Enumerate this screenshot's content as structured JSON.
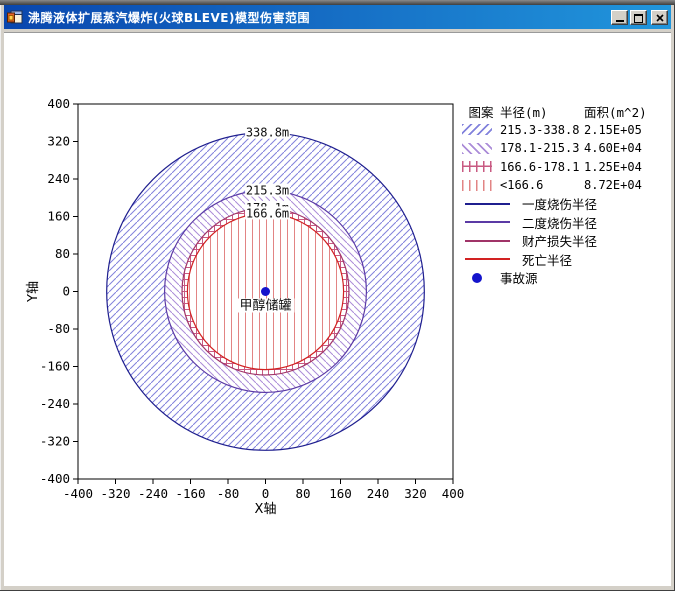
{
  "window": {
    "title": "沸腾液体扩展蒸汽爆炸(火球BLEVE)模型伤害范围",
    "icons": {
      "minimize": "_",
      "maximize": "□",
      "close": "×",
      "app": "form-window-icon"
    }
  },
  "chart_data": {
    "type": "radial_hazard_zones",
    "xlabel": "X轴",
    "ylabel": "Y轴",
    "xlim": [
      -400,
      400
    ],
    "ylim": [
      -400,
      400
    ],
    "tick_step": 80,
    "grid": false,
    "center": {
      "x": 0,
      "y": 0,
      "label": "甲醇储罐",
      "marker_color": "#1414cc"
    },
    "rings": [
      {
        "name": "一度烧伤半径",
        "radius_m": 338.8,
        "label": "338.8m",
        "stroke": "#1f1f8f",
        "hatch": "diag_up",
        "hatch_color": "#8282dc",
        "annulus": "215.3-338.8",
        "area_m2": "2.15E+05"
      },
      {
        "name": "二度烧伤半径",
        "radius_m": 215.3,
        "label": "215.3m",
        "stroke": "#5b3aa5",
        "hatch": "diag_down",
        "hatch_color": "#ab8cd8",
        "annulus": "178.1-215.3",
        "area_m2": "4.60E+04"
      },
      {
        "name": "财产损失半径",
        "radius_m": 178.1,
        "label": "178.1m",
        "stroke": "#a03468",
        "hatch": "cross",
        "hatch_color": "#c85a82",
        "annulus": "166.6-178.1",
        "area_m2": "1.25E+04"
      },
      {
        "name": "死亡半径",
        "radius_m": 166.6,
        "label": "166.6m",
        "stroke": "#d22222",
        "hatch": "vertical",
        "hatch_color": "#e28484",
        "annulus": "<166.6",
        "area_m2": "8.72E+04"
      }
    ]
  },
  "legend": {
    "header": {
      "pattern": "图案",
      "radius": "半径(m)",
      "area": "面积(m^2)"
    },
    "hatch_rows": [
      {
        "radius": "215.3-338.8",
        "area": "2.15E+05",
        "hatch": "diag_up",
        "color": "#8282dc"
      },
      {
        "radius": "178.1-215.3",
        "area": "4.60E+04",
        "hatch": "diag_down",
        "color": "#ab8cd8"
      },
      {
        "radius": "166.6-178.1",
        "area": "1.25E+04",
        "hatch": "cross",
        "color": "#c85a82"
      },
      {
        "radius": "<166.6",
        "area": "8.72E+04",
        "hatch": "vertical",
        "color": "#e28484"
      }
    ],
    "line_rows": [
      {
        "label": "一度烧伤半径",
        "color": "#1f1f8f"
      },
      {
        "label": "二度烧伤半径",
        "color": "#5b3aa5"
      },
      {
        "label": "财产损失半径",
        "color": "#a03468"
      },
      {
        "label": "死亡半径",
        "color": "#d22222"
      }
    ],
    "source_row": {
      "label": "事故源",
      "color": "#1414cc"
    }
  }
}
